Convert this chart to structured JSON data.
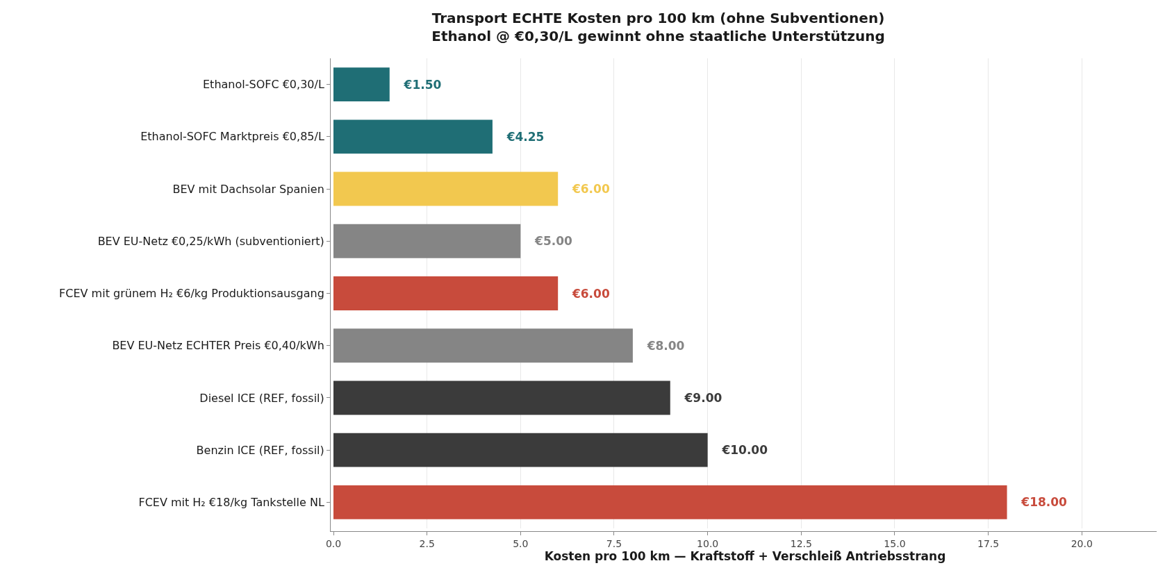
{
  "chart_data": {
    "type": "bar",
    "orientation": "horizontal",
    "title": "Transport ECHTE Kosten pro 100 km (ohne Subventionen)",
    "subtitle": "Ethanol @ €0,30/L gewinnt ohne staatliche Unterstützung",
    "xlabel": "Kosten pro 100 km — Kraftstoff + Verschleiß Antriebsstrang",
    "categories": [
      "Ethanol-SOFC €0,30/L",
      "Ethanol-SOFC Marktpreis €0,85/L",
      "BEV mit Dachsolar Spanien",
      "BEV EU-Netz €0,25/kWh (subventioniert)",
      "FCEV mit grünem H₂ €6/kg Produktionsausgang",
      "BEV EU-Netz ECHTER Preis €0,40/kWh",
      "Diesel ICE (REF, fossil)",
      "Benzin ICE (REF, fossil)",
      "FCEV mit H₂ €18/kg Tankstelle NL"
    ],
    "values": [
      1.5,
      4.25,
      6,
      5,
      6,
      8,
      9,
      10,
      18
    ],
    "colors": [
      "#1f6e75",
      "#1f6e75",
      "#f2c84f",
      "#858585",
      "#c84b3c",
      "#858585",
      "#3b3b3b",
      "#3b3b3b",
      "#c84b3c"
    ],
    "value_labels": [
      "€1.50",
      "€4.25",
      "€6.00",
      "€5.00",
      "€6.00",
      "€8.00",
      "€9.00",
      "€10.00",
      "€18.00"
    ],
    "xlim": [
      0,
      22
    ],
    "xticks": [
      {
        "value": 0,
        "label": "0.0"
      },
      {
        "value": 2.5,
        "label": "2.5"
      },
      {
        "value": 5,
        "label": "5.0"
      },
      {
        "value": 7.5,
        "label": "7.5"
      },
      {
        "value": 10,
        "label": "10.0"
      },
      {
        "value": 12.5,
        "label": "12.5"
      },
      {
        "value": 15,
        "label": "15.0"
      },
      {
        "value": 17.5,
        "label": "17.5"
      },
      {
        "value": 20,
        "label": "20.0"
      }
    ],
    "grid": "x"
  }
}
